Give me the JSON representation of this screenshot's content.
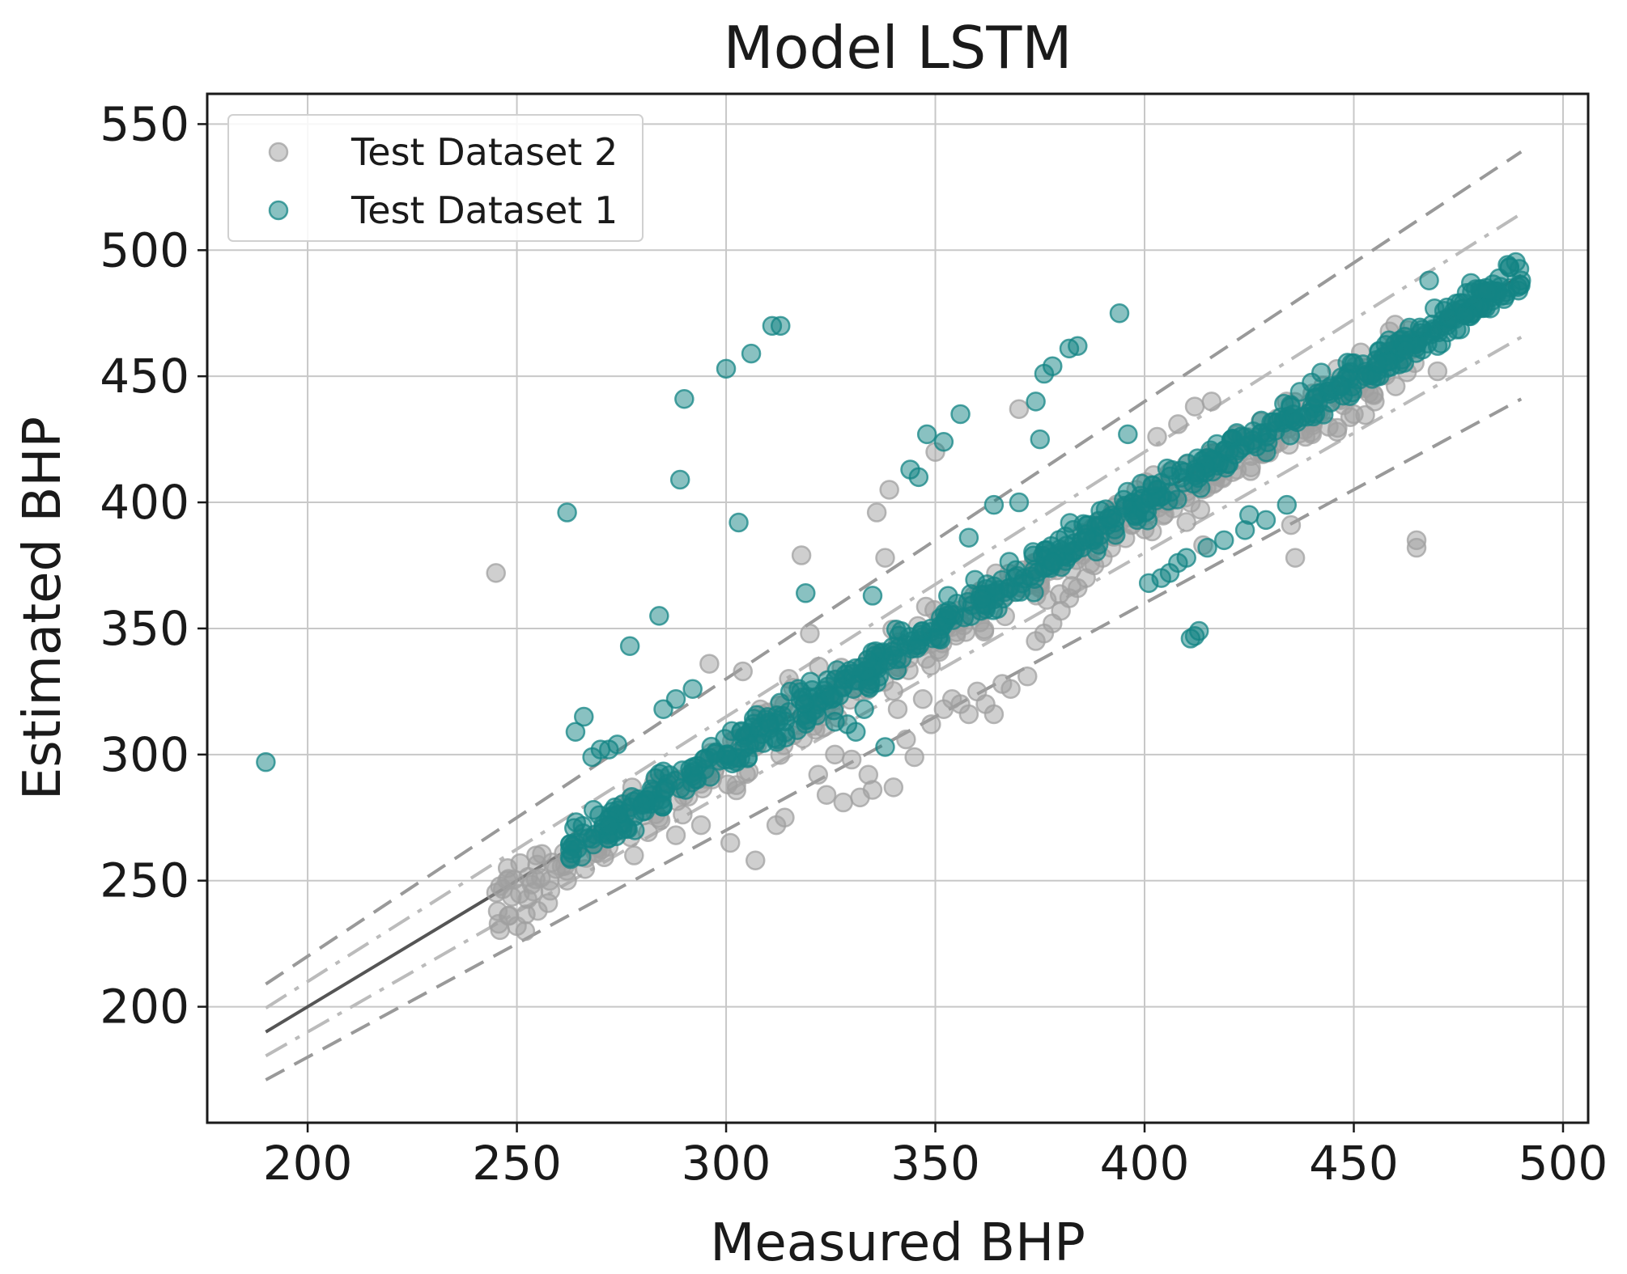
{
  "chart_data": {
    "type": "scatter",
    "title": "Model LSTM",
    "xlabel": "Measured BHP",
    "ylabel": "Estimated BHP",
    "xlim": [
      176,
      506
    ],
    "ylim": [
      154,
      562
    ],
    "xticks": [
      200,
      250,
      300,
      350,
      400,
      450,
      500
    ],
    "yticks": [
      200,
      250,
      300,
      350,
      400,
      450,
      500,
      550
    ],
    "grid": true,
    "legend": {
      "position": "top-left"
    },
    "reference_lines": [
      {
        "style": "solid",
        "color": "#555555",
        "x": [
          190,
          490
        ],
        "y": [
          190,
          490
        ]
      },
      {
        "style": "dashed",
        "color": "#999999",
        "x": [
          190,
          490
        ],
        "y": [
          209,
          539
        ]
      },
      {
        "style": "dashed",
        "color": "#999999",
        "x": [
          190,
          490
        ],
        "y": [
          171,
          441
        ]
      },
      {
        "style": "dashdot",
        "color": "#bbbbbb",
        "x": [
          190,
          490
        ],
        "y": [
          199.5,
          514.5
        ]
      },
      {
        "style": "dashdot",
        "color": "#bbbbbb",
        "x": [
          190,
          490
        ],
        "y": [
          180.5,
          465.5
        ]
      }
    ],
    "series": [
      {
        "name": "Test Dataset 2",
        "color": "#a0a0a0",
        "main_band": {
          "x_start": 245,
          "x_end": 465,
          "bias": -3,
          "spread": 6,
          "count": 420
        },
        "points": [
          [
            245,
            372
          ],
          [
            248,
            236
          ],
          [
            250,
            232
          ],
          [
            252,
            230
          ],
          [
            255,
            238
          ],
          [
            258,
            246
          ],
          [
            262,
            250
          ],
          [
            278,
            260
          ],
          [
            288,
            268
          ],
          [
            294,
            272
          ],
          [
            296,
            336
          ],
          [
            301,
            265
          ],
          [
            304,
            333
          ],
          [
            307,
            258
          ],
          [
            312,
            272
          ],
          [
            314,
            275
          ],
          [
            315,
            330
          ],
          [
            318,
            379
          ],
          [
            320,
            348
          ],
          [
            322,
            292
          ],
          [
            324,
            284
          ],
          [
            326,
            300
          ],
          [
            328,
            281
          ],
          [
            330,
            298
          ],
          [
            332,
            283
          ],
          [
            334,
            292
          ],
          [
            335,
            286
          ],
          [
            336,
            396
          ],
          [
            338,
            378
          ],
          [
            339,
            405
          ],
          [
            340,
            287
          ],
          [
            341,
            318
          ],
          [
            343,
            306
          ],
          [
            345,
            299
          ],
          [
            347,
            322
          ],
          [
            349,
            312
          ],
          [
            350,
            420
          ],
          [
            352,
            318
          ],
          [
            354,
            322
          ],
          [
            356,
            320
          ],
          [
            358,
            316
          ],
          [
            360,
            325
          ],
          [
            362,
            320
          ],
          [
            364,
            316
          ],
          [
            366,
            328
          ],
          [
            368,
            326
          ],
          [
            370,
            437
          ],
          [
            372,
            331
          ],
          [
            374,
            345
          ],
          [
            376,
            348
          ],
          [
            378,
            352
          ],
          [
            380,
            357
          ],
          [
            382,
            362
          ],
          [
            384,
            366
          ],
          [
            386,
            370
          ],
          [
            388,
            375
          ],
          [
            390,
            378
          ],
          [
            392,
            382
          ],
          [
            394,
            392
          ],
          [
            396,
            394
          ],
          [
            398,
            405
          ],
          [
            401,
            404
          ],
          [
            403,
            426
          ],
          [
            406,
            412
          ],
          [
            408,
            431
          ],
          [
            410,
            415
          ],
          [
            412,
            438
          ],
          [
            414,
            383
          ],
          [
            416,
            440
          ],
          [
            420,
            418
          ],
          [
            424,
            424
          ],
          [
            428,
            420
          ],
          [
            432,
            428
          ],
          [
            435,
            391
          ],
          [
            436,
            378
          ],
          [
            440,
            427
          ],
          [
            444,
            430
          ],
          [
            446,
            428
          ],
          [
            450,
            435
          ],
          [
            455,
            440
          ],
          [
            460,
            446
          ],
          [
            465,
            385
          ],
          [
            465,
            382
          ],
          [
            470,
            452
          ]
        ]
      },
      {
        "name": "Test Dataset 1",
        "color": "#138484",
        "main_band": {
          "x_start": 262,
          "x_end": 490,
          "bias": 0,
          "spread": 4,
          "count": 650
        },
        "points": [
          [
            190,
            297
          ],
          [
            262,
            396
          ],
          [
            264,
            309
          ],
          [
            266,
            315
          ],
          [
            268,
            299
          ],
          [
            270,
            302
          ],
          [
            272,
            302
          ],
          [
            274,
            304
          ],
          [
            277,
            343
          ],
          [
            280,
            280
          ],
          [
            284,
            355
          ],
          [
            285,
            318
          ],
          [
            288,
            322
          ],
          [
            289,
            409
          ],
          [
            290,
            441
          ],
          [
            292,
            326
          ],
          [
            300,
            453
          ],
          [
            303,
            392
          ],
          [
            306,
            459
          ],
          [
            311,
            470
          ],
          [
            313,
            470
          ],
          [
            319,
            364
          ],
          [
            326,
            313
          ],
          [
            329,
            312
          ],
          [
            331,
            309
          ],
          [
            333,
            318
          ],
          [
            335,
            363
          ],
          [
            338,
            303
          ],
          [
            344,
            413
          ],
          [
            346,
            410
          ],
          [
            348,
            427
          ],
          [
            352,
            424
          ],
          [
            356,
            435
          ],
          [
            358,
            386
          ],
          [
            364,
            399
          ],
          [
            370,
            400
          ],
          [
            374,
            440
          ],
          [
            375,
            425
          ],
          [
            376,
            451
          ],
          [
            378,
            454
          ],
          [
            382,
            461
          ],
          [
            384,
            462
          ],
          [
            394,
            475
          ],
          [
            396,
            427
          ],
          [
            401,
            368
          ],
          [
            404,
            370
          ],
          [
            406,
            372
          ],
          [
            408,
            376
          ],
          [
            410,
            378
          ],
          [
            411,
            346
          ],
          [
            412,
            347
          ],
          [
            413,
            349
          ],
          [
            415,
            382
          ],
          [
            419,
            385
          ],
          [
            424,
            389
          ],
          [
            425,
            395
          ],
          [
            429,
            393
          ],
          [
            434,
            399
          ],
          [
            468,
            488
          ],
          [
            478,
            487
          ],
          [
            490,
            488
          ]
        ]
      }
    ]
  }
}
